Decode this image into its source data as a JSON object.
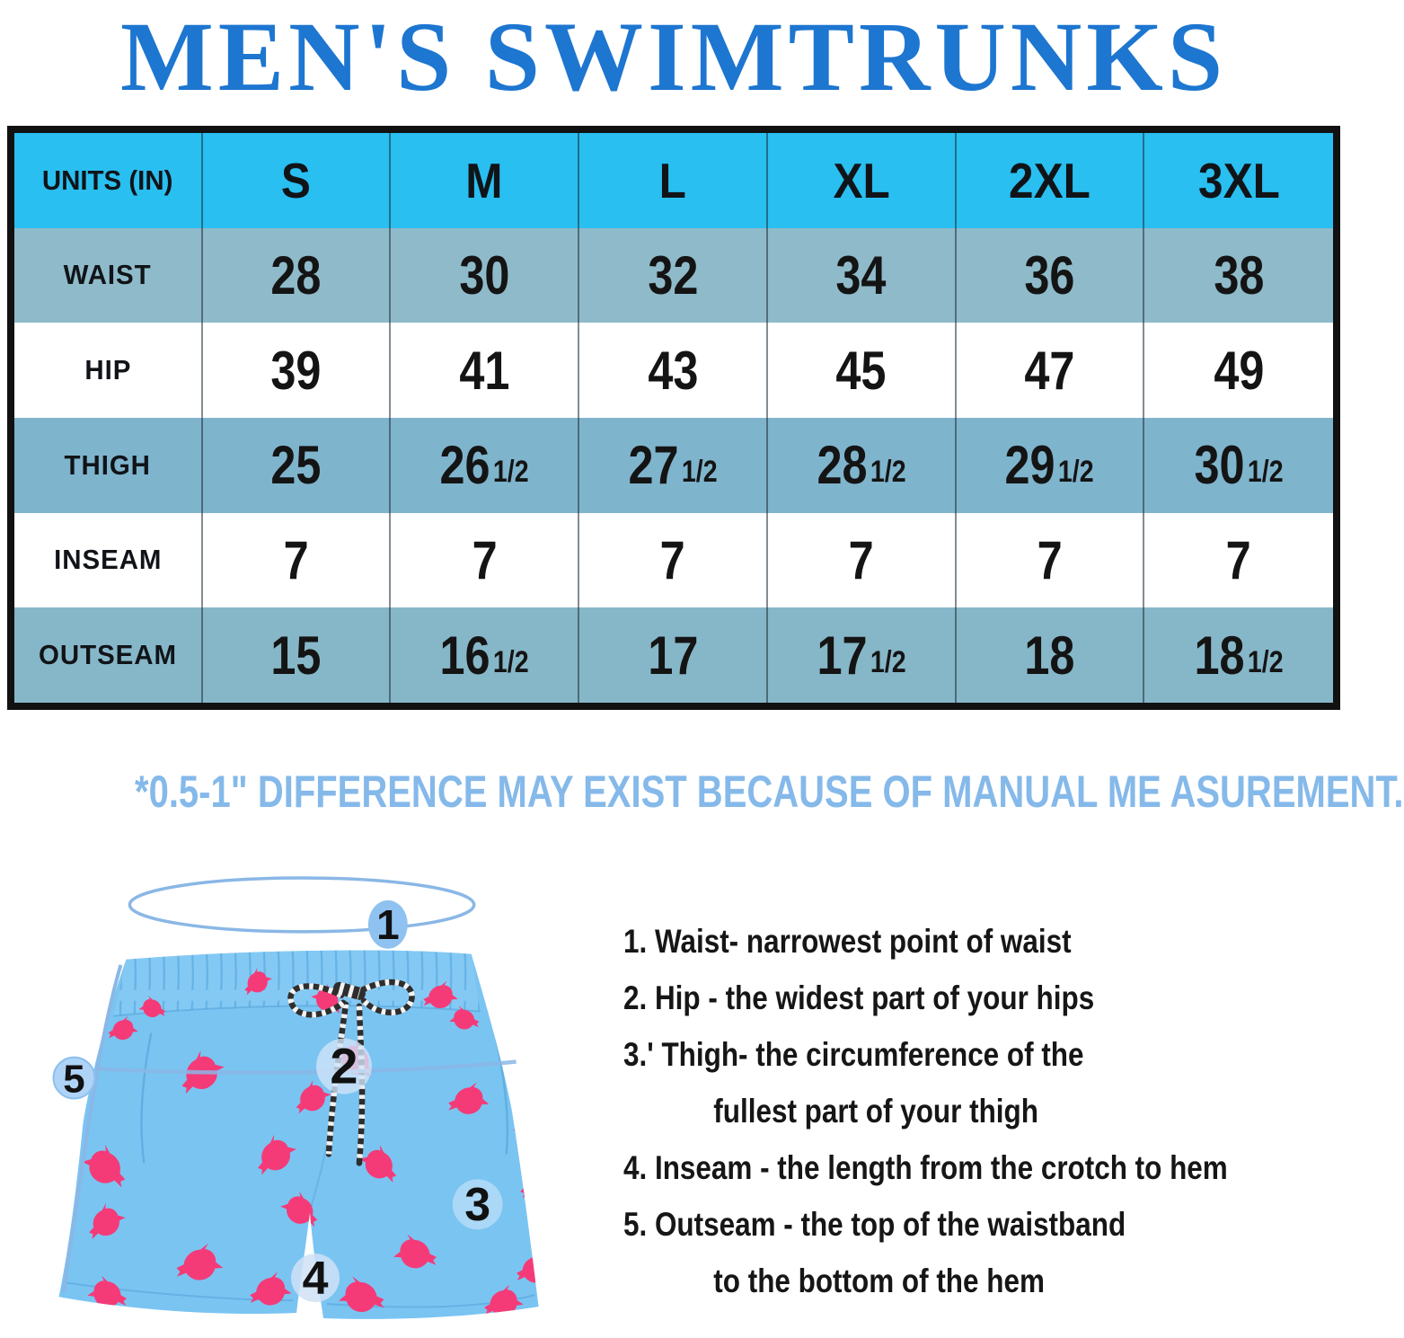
{
  "title": "MEN'S SWIMTRUNKS",
  "table": {
    "columns": [
      "UNITS (IN)",
      "S",
      "M",
      "L",
      "XL",
      "2XL",
      "3XL"
    ],
    "rows": [
      {
        "label": "WAIST",
        "values": [
          "28",
          "30",
          "32",
          "34",
          "36",
          "38"
        ]
      },
      {
        "label": "HIP",
        "values": [
          "39",
          "41",
          "43",
          "45",
          "47",
          "49"
        ]
      },
      {
        "label": "THIGH",
        "values": [
          "25",
          "26 1/2",
          "27 1/2",
          "28 1/2",
          "29 1/2",
          "30 1/2"
        ]
      },
      {
        "label": "INSEAM",
        "values": [
          "7",
          "7",
          "7",
          "7",
          "7",
          "7"
        ]
      },
      {
        "label": "OUTSEAM",
        "values": [
          "15",
          "16 1/2",
          "17",
          "17 1/2",
          "18",
          "18 1/2"
        ]
      }
    ]
  },
  "note": "*0.5-1\" DIFFERENCE MAY EXIST BECAUSE OF MANUAL ME ASUREMENT.",
  "guide": {
    "items": [
      {
        "text": "1. Waist- narrowest point of waist"
      },
      {
        "text": "2. Hip - the widest part of your hips"
      },
      {
        "text": "3.' Thigh- the circumference of the",
        "cont": "fullest part of your thigh"
      },
      {
        "text": "4. Inseam - the length from the crotch to hem"
      },
      {
        "text": "5. Outseam - the top of the waistband",
        "cont": "to the bottom of the hem"
      }
    ]
  },
  "diagram": {
    "badges": [
      "1",
      "2",
      "3",
      "4",
      "5"
    ]
  },
  "colors": {
    "title_blue": "#1d76d0",
    "header_cyan": "#29bff0",
    "row_muted": "#8ab8c9",
    "note_blue": "#85b9ea",
    "trunks_blue": "#7ac4f2",
    "dolphin_pink": "#f43b78",
    "measure_blue": "#8ab7e6"
  }
}
